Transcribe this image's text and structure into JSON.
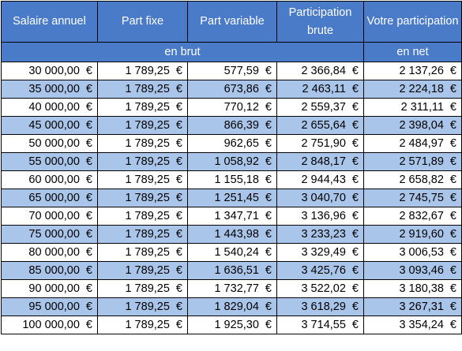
{
  "table": {
    "headers": [
      "Salaire annuel",
      "Part fixe",
      "Part variable",
      "Participation brute",
      "Votre participation"
    ],
    "subheaders": {
      "brut": "en brut",
      "net": "en net"
    },
    "currency": "€",
    "rows": [
      [
        "30 000,00",
        "1 789,25",
        "577,59",
        "2 366,84",
        "2 137,26"
      ],
      [
        "35 000,00",
        "1 789,25",
        "673,86",
        "2 463,11",
        "2 224,18"
      ],
      [
        "40 000,00",
        "1 789,25",
        "770,12",
        "2 559,37",
        "2 311,11"
      ],
      [
        "45 000,00",
        "1 789,25",
        "866,39",
        "2 655,64",
        "2 398,04"
      ],
      [
        "50 000,00",
        "1 789,25",
        "962,65",
        "2 751,90",
        "2 484,97"
      ],
      [
        "55 000,00",
        "1 789,25",
        "1 058,92",
        "2 848,17",
        "2 571,89"
      ],
      [
        "60 000,00",
        "1 789,25",
        "1 155,18",
        "2 944,43",
        "2 658,82"
      ],
      [
        "65 000,00",
        "1 789,25",
        "1 251,45",
        "3 040,70",
        "2 745,75"
      ],
      [
        "70 000,00",
        "1 789,25",
        "1 347,71",
        "3 136,96",
        "2 832,67"
      ],
      [
        "75 000,00",
        "1 789,25",
        "1 443,98",
        "3 233,23",
        "2 919,60"
      ],
      [
        "80 000,00",
        "1 789,25",
        "1 540,24",
        "3 329,49",
        "3 006,53"
      ],
      [
        "85 000,00",
        "1 789,25",
        "1 636,51",
        "3 425,76",
        "3 093,46"
      ],
      [
        "90 000,00",
        "1 789,25",
        "1 732,77",
        "3 522,02",
        "3 180,38"
      ],
      [
        "95 000,00",
        "1 789,25",
        "1 829,04",
        "3 618,29",
        "3 267,31"
      ],
      [
        "100 000,00",
        "1 789,25",
        "1 925,30",
        "3 714,55",
        "3 354,24"
      ]
    ]
  },
  "colors": {
    "header": "#4a7bc9",
    "stripe": "#a9c5e9",
    "white": "#ffffff"
  }
}
